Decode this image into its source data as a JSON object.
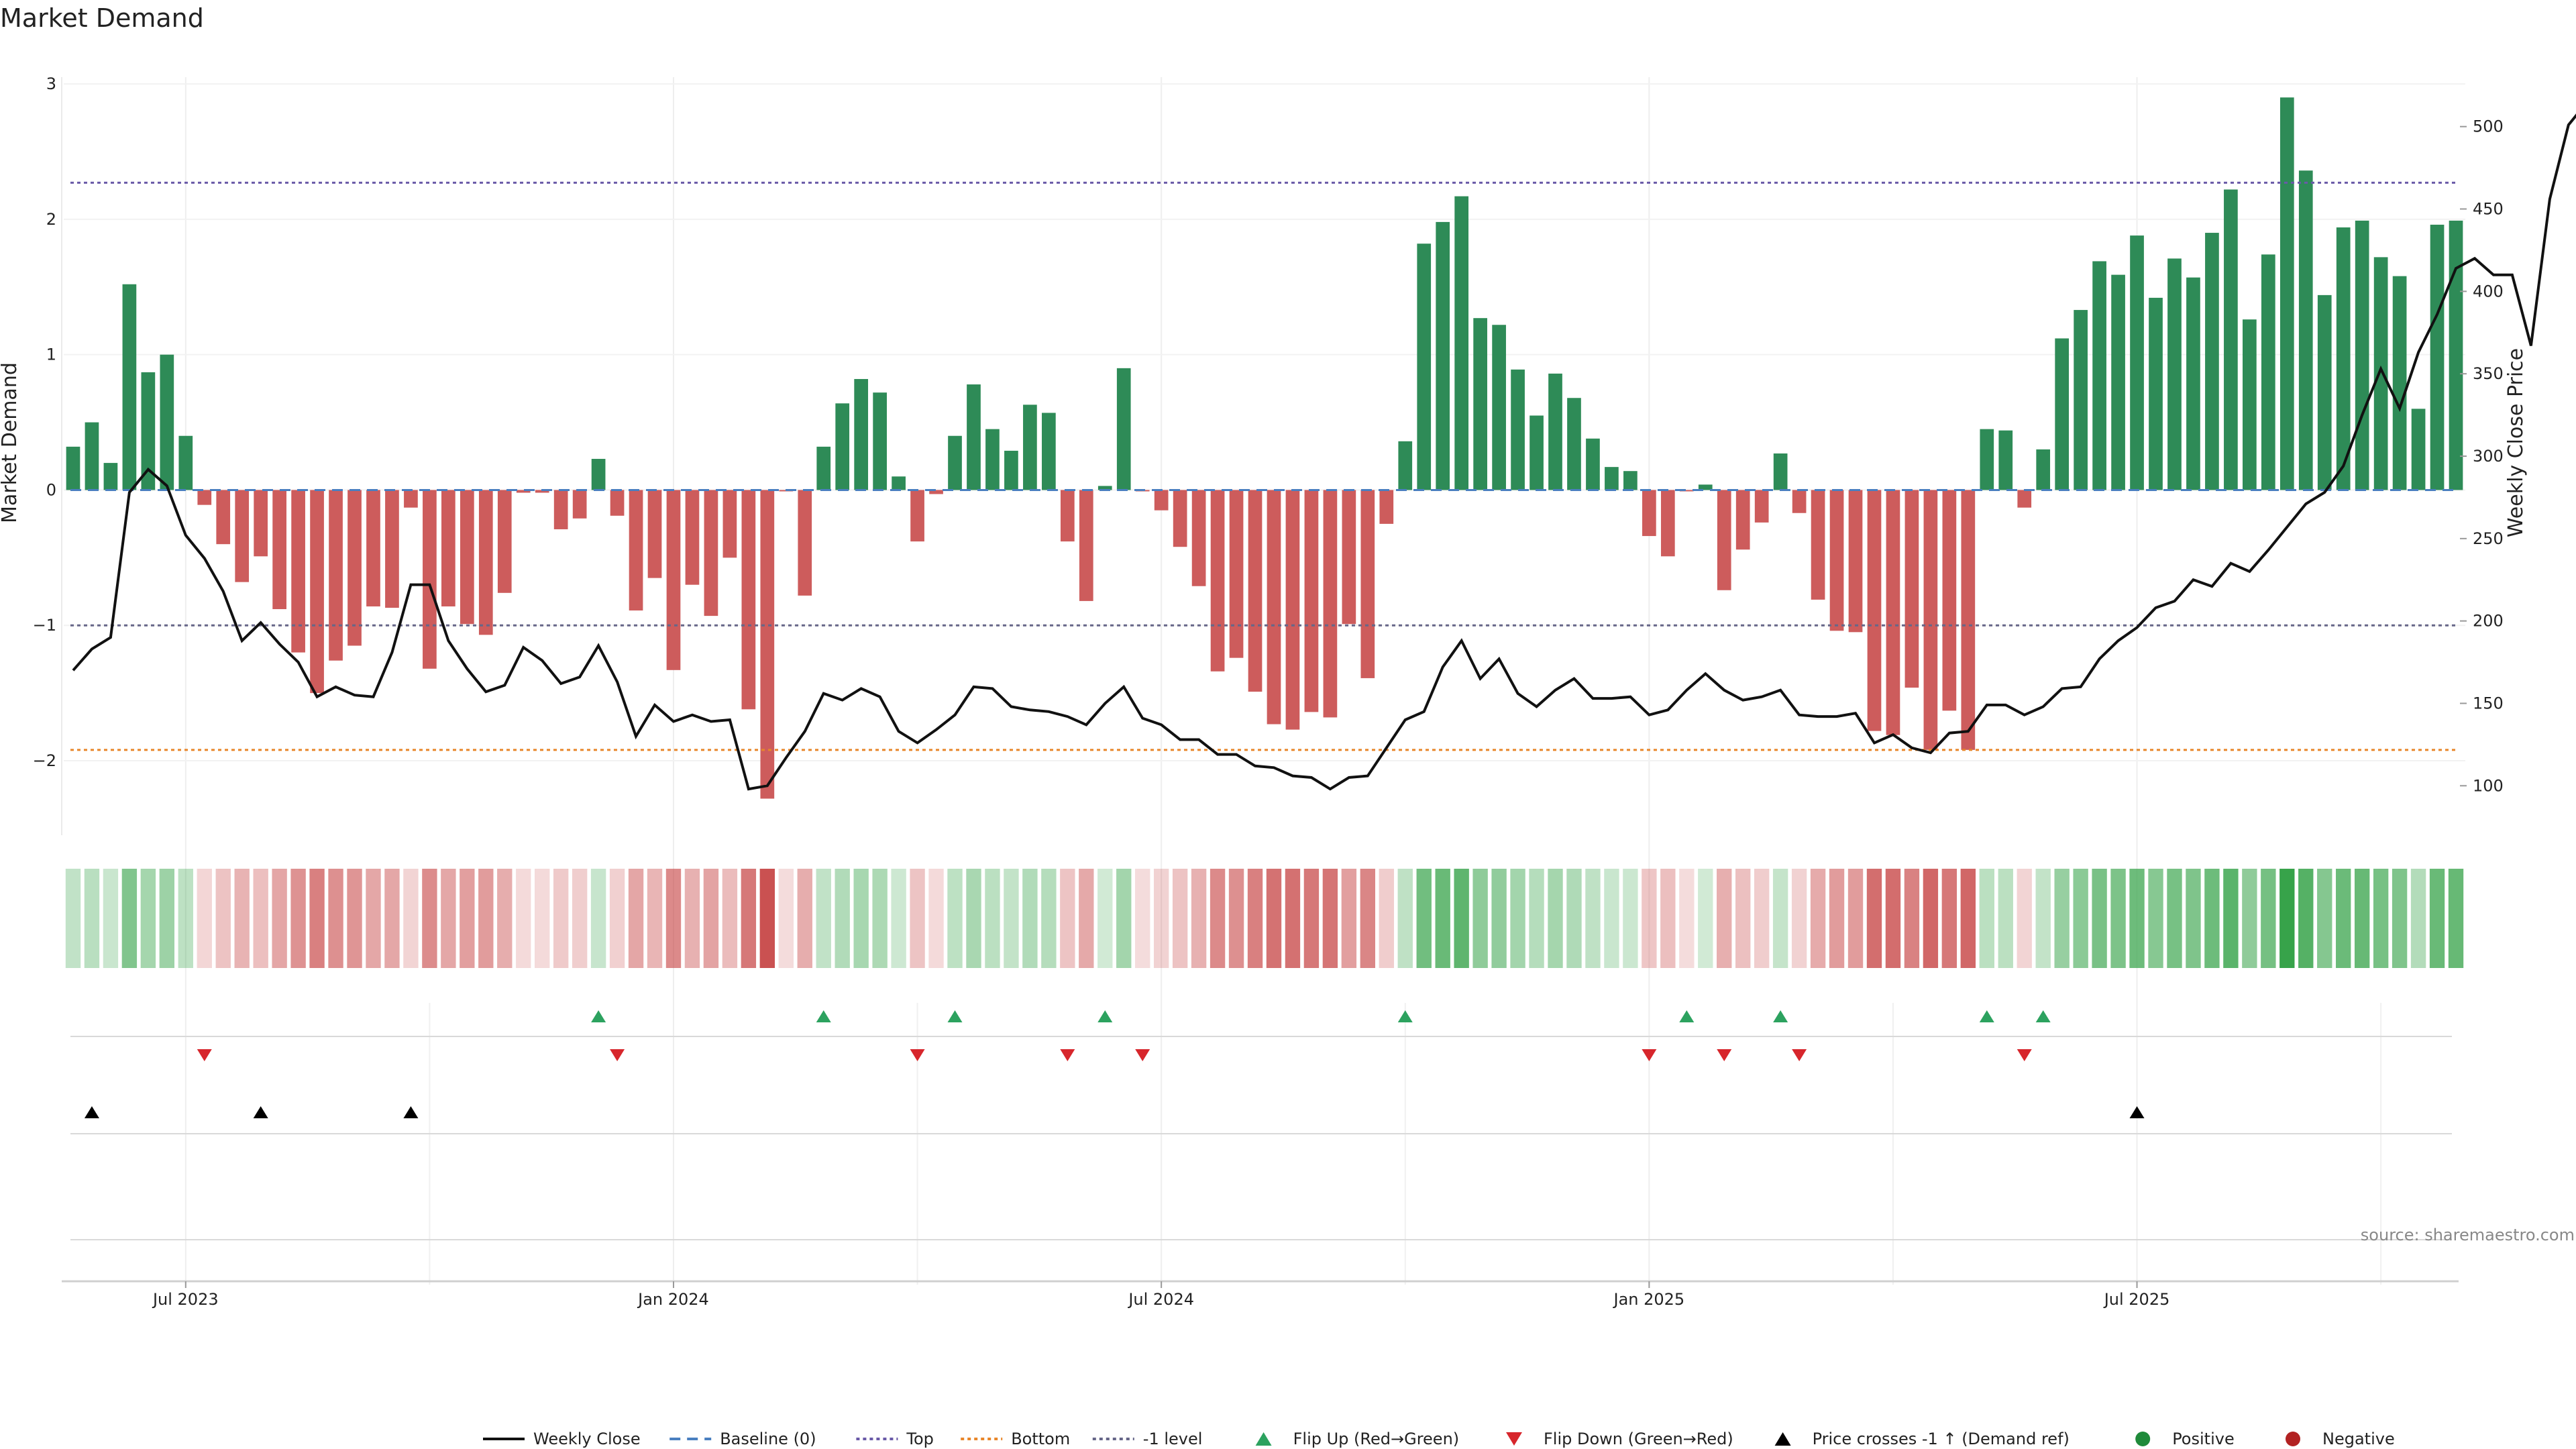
{
  "chart_data": {
    "type": "bar",
    "title": "Market Demand",
    "ylabel": "Market Demand",
    "y2label": "Weekly Close Price",
    "source": "source: sharemaestro.com",
    "ylim": [
      -2.55,
      3.05
    ],
    "y_ticks": [
      "−2",
      "−1",
      "0",
      "1",
      "2",
      "3"
    ],
    "y_tick_values": [
      -2,
      -1,
      0,
      1,
      2,
      3
    ],
    "y2lim": [
      70,
      530
    ],
    "y2_ticks": [
      "100",
      "150",
      "200",
      "250",
      "300",
      "350",
      "400",
      "450",
      "500"
    ],
    "y2_tick_values": [
      100,
      150,
      200,
      250,
      300,
      350,
      400,
      450,
      500
    ],
    "x_tick_labels": [
      "Jul 2023",
      "Jan 2024",
      "Jul 2024",
      "Jan 2025",
      "Jul 2025"
    ],
    "x_tick_weeks": [
      6,
      32,
      58,
      84,
      110
    ],
    "reference_lines": {
      "top": 2.27,
      "bottom": -1.92,
      "minus_one": -1.0,
      "baseline": 0
    },
    "demand": [
      0.32,
      0.5,
      0.2,
      1.52,
      0.87,
      1.0,
      0.4,
      -0.11,
      -0.4,
      -0.68,
      -0.49,
      -0.88,
      -1.2,
      -1.5,
      -1.26,
      -1.15,
      -0.86,
      -0.87,
      -0.13,
      -1.32,
      -0.86,
      -0.99,
      -1.07,
      -0.76,
      -0.02,
      -0.02,
      -0.29,
      -0.21,
      0.23,
      -0.19,
      -0.89,
      -0.65,
      -1.33,
      -0.7,
      -0.93,
      -0.5,
      -1.62,
      -2.28,
      -0.01,
      -0.78,
      0.32,
      0.64,
      0.82,
      0.72,
      0.1,
      -0.38,
      -0.03,
      0.4,
      0.78,
      0.45,
      0.29,
      0.63,
      0.57,
      -0.38,
      -0.82,
      0.03,
      0.9,
      -0.01,
      -0.15,
      -0.42,
      -0.71,
      -1.34,
      -1.24,
      -1.49,
      -1.73,
      -1.77,
      -1.64,
      -1.68,
      -0.99,
      -1.39,
      -0.25,
      0.36,
      1.82,
      1.98,
      2.17,
      1.27,
      1.22,
      0.89,
      0.55,
      0.86,
      0.68,
      0.38,
      0.17,
      0.14,
      -0.34,
      -0.49,
      -0.01,
      0.04,
      -0.74,
      -0.44,
      -0.24,
      0.27,
      -0.17,
      -0.81,
      -1.04,
      -1.05,
      -1.78,
      -1.81,
      -1.46,
      -1.92,
      -1.63,
      -1.92,
      0.45,
      0.44,
      -0.13,
      0.3,
      1.12,
      1.33,
      1.69,
      1.59,
      1.88,
      1.42,
      1.71,
      1.57,
      1.9,
      2.22,
      1.26,
      1.74,
      2.9,
      2.36,
      1.44,
      1.94,
      1.99,
      1.72,
      1.58,
      0.6,
      1.96,
      1.99
    ],
    "weekly_close": [
      170,
      183,
      190,
      278,
      292,
      282,
      252,
      238,
      218,
      188,
      199,
      186,
      175,
      154,
      160,
      155,
      154,
      181,
      222,
      222,
      188,
      171,
      157,
      161,
      184,
      176,
      162,
      166,
      185,
      163,
      130,
      149,
      139,
      143,
      139,
      140,
      98,
      100,
      117,
      133,
      156,
      152,
      159,
      154,
      133,
      126,
      134,
      143,
      160,
      159,
      148,
      146,
      145,
      142,
      137,
      150,
      160,
      141,
      137,
      128,
      128,
      119,
      119,
      112,
      111,
      106,
      105,
      98,
      105,
      106,
      123,
      140,
      145,
      172,
      188,
      165,
      177,
      156,
      148,
      158,
      165,
      153,
      153,
      154,
      143,
      146,
      158,
      168,
      158,
      152,
      154,
      158,
      143,
      142,
      142,
      144,
      126,
      131,
      123,
      120,
      132,
      133,
      149,
      149,
      143,
      148,
      159,
      160,
      177,
      188,
      196,
      208,
      212,
      225,
      221,
      235,
      230,
      243,
      257,
      271,
      278,
      294,
      325,
      353,
      329,
      363,
      386,
      414,
      420,
      410,
      410,
      367,
      456,
      501,
      515
    ]
  },
  "bands": {
    "flip_up_weeks": [
      28,
      40,
      47,
      55,
      71,
      86,
      91,
      102,
      105
    ],
    "flip_down_weeks": [
      7,
      29,
      45,
      53,
      57,
      84,
      88,
      92,
      104
    ],
    "price_cross_weeks": [
      1,
      10,
      18,
      110
    ]
  },
  "legend": [
    {
      "label": "Weekly Close",
      "kind": "line-solid",
      "color": "#111111"
    },
    {
      "label": "Baseline (0)",
      "kind": "line-dash",
      "color": "#4a7fc0"
    },
    {
      "label": "Top",
      "kind": "line-dot",
      "color": "#6a5aa8"
    },
    {
      "label": "Bottom",
      "kind": "line-dot",
      "color": "#e8862a"
    },
    {
      "label": "-1 level",
      "kind": "line-dot",
      "color": "#666688"
    },
    {
      "label": "Flip Up (Red→Green)",
      "kind": "tri-up",
      "color": "#2ca25f"
    },
    {
      "label": "Flip Down (Green→Red)",
      "kind": "tri-down",
      "color": "#d7262c"
    },
    {
      "label": "Price crosses -1 ↑ (Demand ref)",
      "kind": "tri-up",
      "color": "#000000"
    },
    {
      "label": "Positive",
      "kind": "dot",
      "color": "#1f8a3a"
    },
    {
      "label": "Negative",
      "kind": "dot",
      "color": "#b22222"
    }
  ],
  "colors": {
    "positive_bar": "#2e8b57",
    "negative_bar": "#cd5c5c",
    "price_line": "#111111",
    "heat_positive": "#37a34a",
    "heat_negative": "#c43c3c",
    "flip_up": "#2ca25f",
    "flip_down": "#d7262c",
    "cross": "#000000"
  }
}
